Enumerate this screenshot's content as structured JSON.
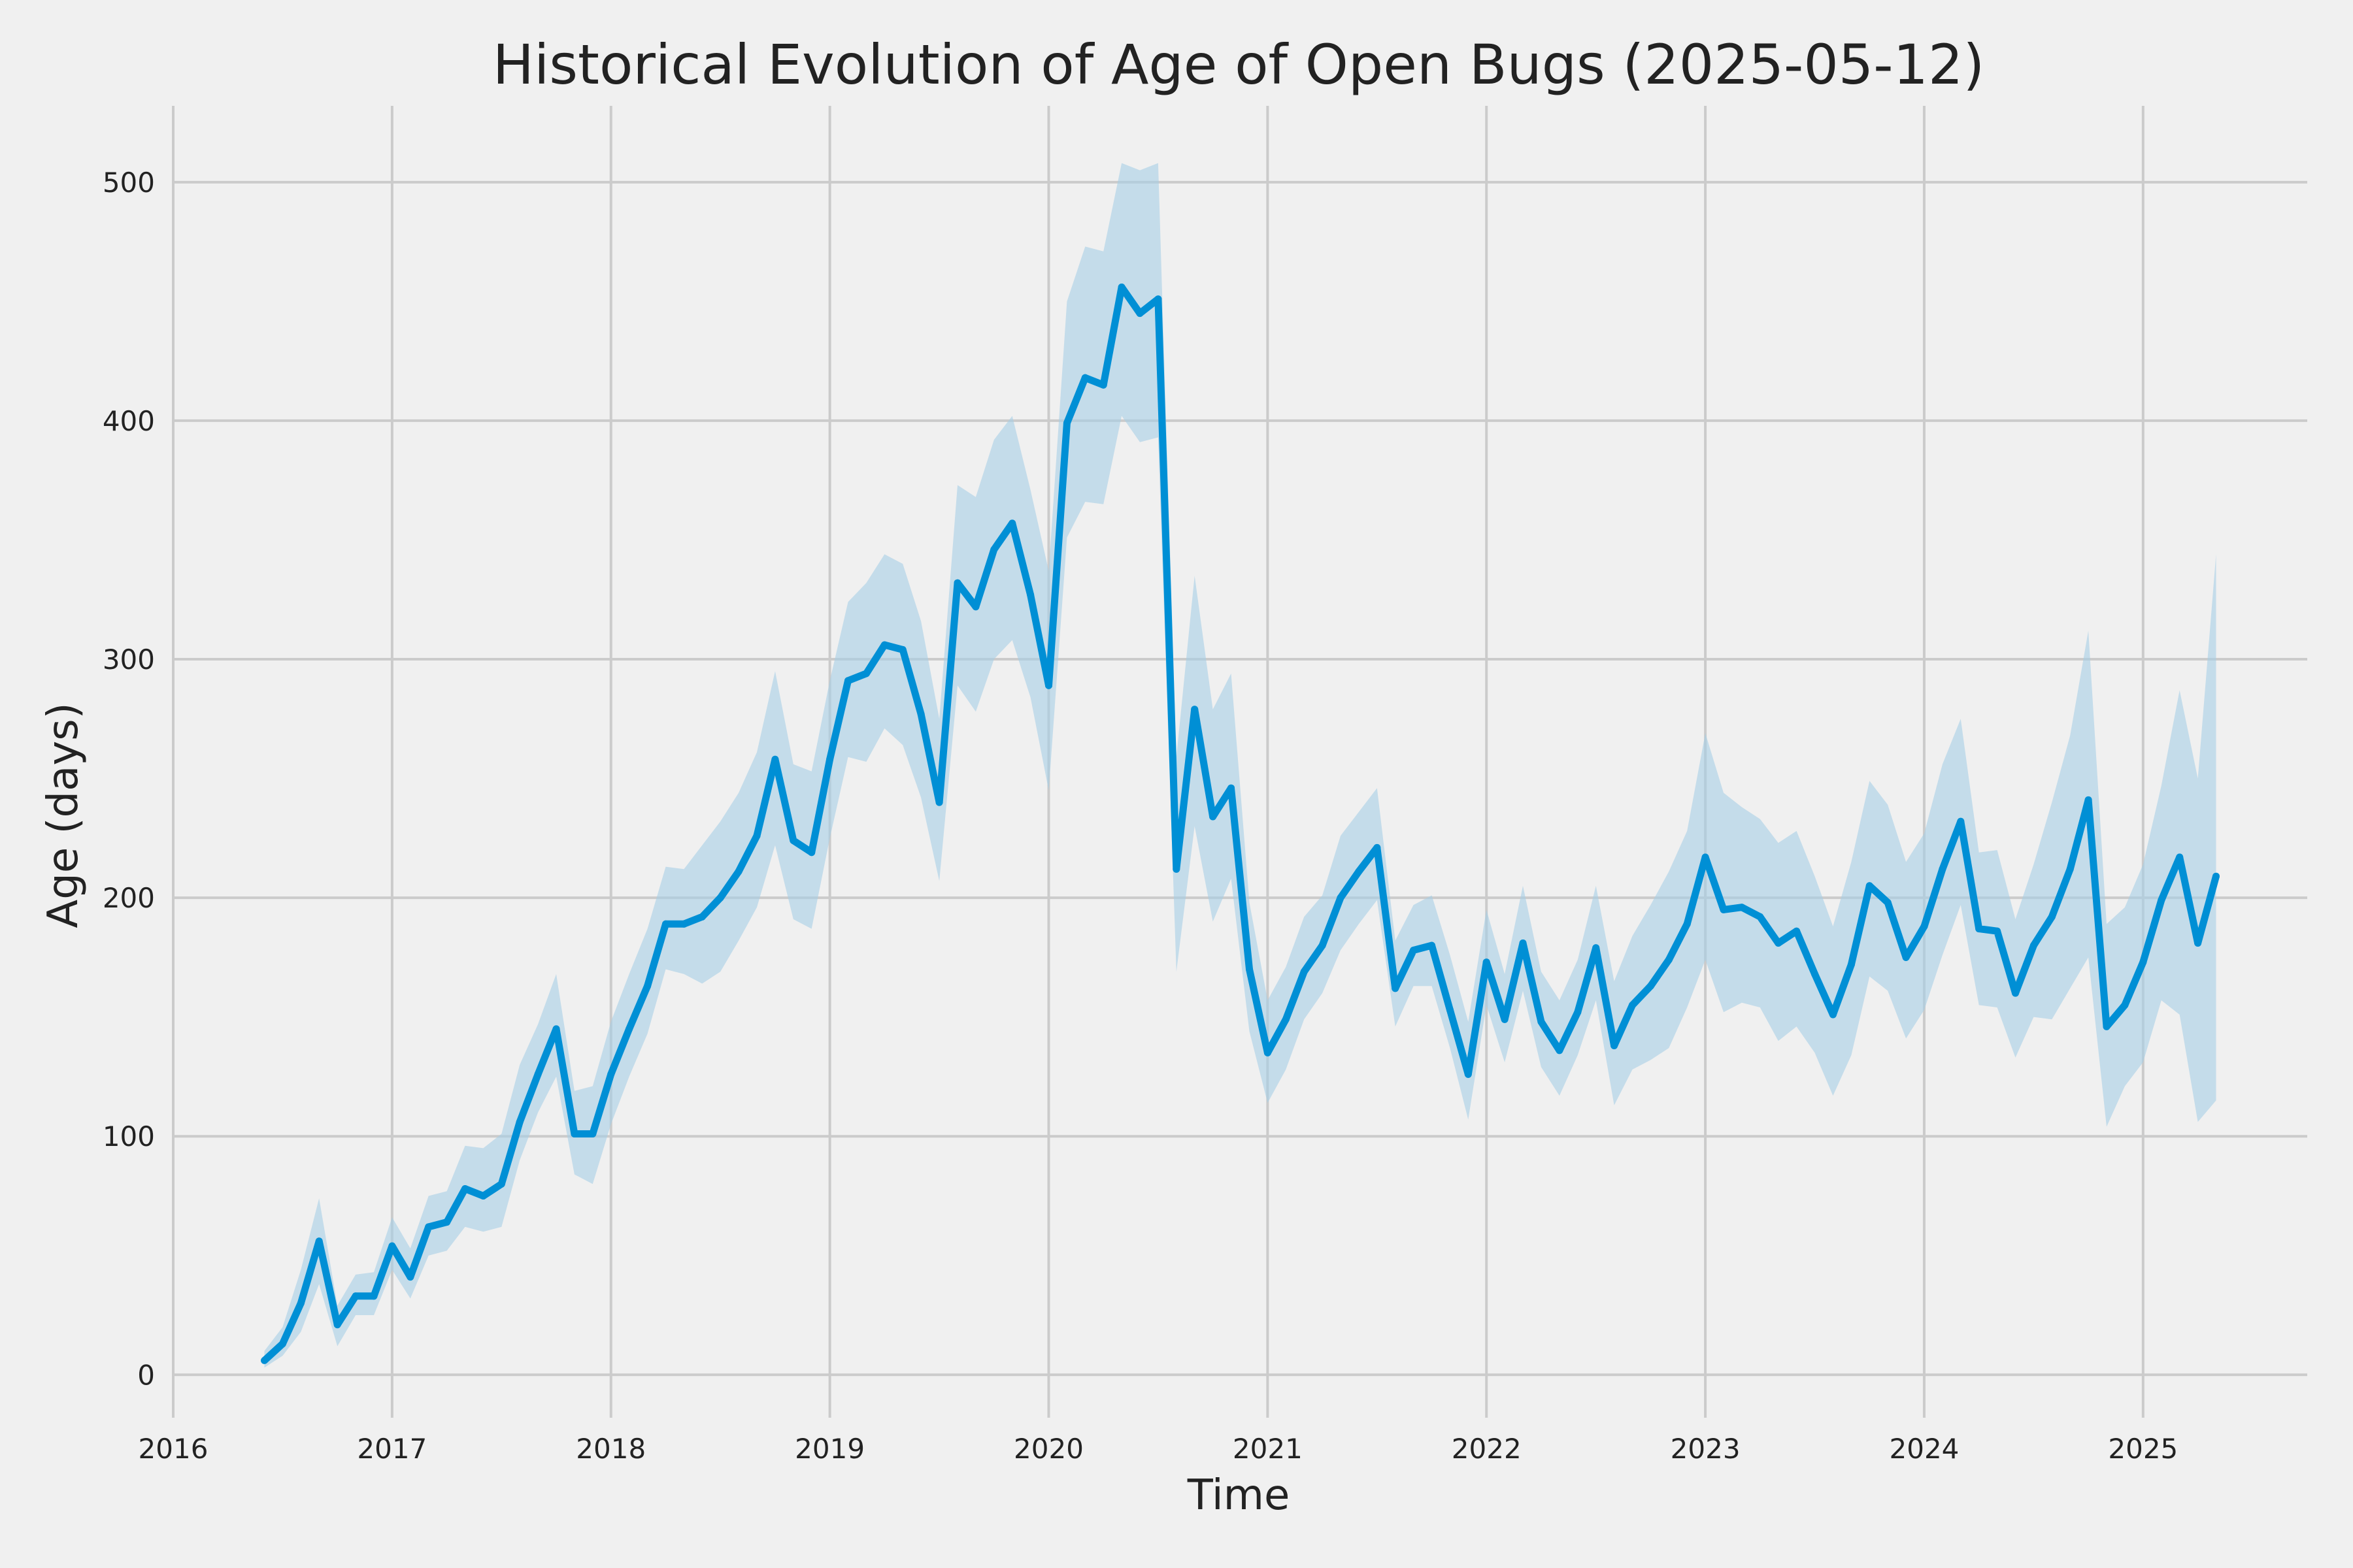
{
  "chart_data": {
    "type": "line",
    "title": "Historical Evolution of Age of Open Bugs (2025-05-12)",
    "xlabel": "Time",
    "ylabel": "Age (days)",
    "xlim": [
      "2016-01-01",
      "2025-10-01"
    ],
    "ylim": [
      -18,
      532
    ],
    "grid": true,
    "x_ticks": [
      "2016",
      "2017",
      "2018",
      "2019",
      "2020",
      "2021",
      "2022",
      "2023",
      "2024",
      "2025"
    ],
    "y_ticks": [
      "0",
      "100",
      "200",
      "300",
      "400",
      "500"
    ],
    "colors": {
      "line": "#008fd5",
      "band": "#a6cfe6",
      "grid": "#cbcbcb",
      "background": "#f0f0f0",
      "text": "#222222"
    },
    "series": [
      {
        "x": [
          "2016-06",
          "2016-07",
          "2016-08",
          "2016-09",
          "2016-10",
          "2016-11",
          "2016-12",
          "2017-01",
          "2017-02",
          "2017-03",
          "2017-04",
          "2017-05",
          "2017-06",
          "2017-07",
          "2017-08",
          "2017-09",
          "2017-10",
          "2017-11",
          "2017-12",
          "2018-01",
          "2018-02",
          "2018-03",
          "2018-04",
          "2018-05",
          "2018-06",
          "2018-07",
          "2018-08",
          "2018-09",
          "2018-10",
          "2018-11",
          "2018-12",
          "2019-01",
          "2019-02",
          "2019-03",
          "2019-04",
          "2019-05",
          "2019-06",
          "2019-07",
          "2019-08",
          "2019-09",
          "2019-10",
          "2019-11",
          "2019-12",
          "2020-01",
          "2020-02",
          "2020-03",
          "2020-04",
          "2020-05",
          "2020-06",
          "2020-07",
          "2020-08",
          "2020-09",
          "2020-10",
          "2020-11",
          "2020-12",
          "2021-01",
          "2021-02",
          "2021-03",
          "2021-04",
          "2021-05",
          "2021-06",
          "2021-07",
          "2021-08",
          "2021-09",
          "2021-10",
          "2021-11",
          "2021-12",
          "2022-01",
          "2022-02",
          "2022-03",
          "2022-04",
          "2022-05",
          "2022-06",
          "2022-07",
          "2022-08",
          "2022-09",
          "2022-10",
          "2022-11",
          "2022-12",
          "2023-01",
          "2023-02",
          "2023-03",
          "2023-04",
          "2023-05",
          "2023-06",
          "2023-07",
          "2023-08",
          "2023-09",
          "2023-10",
          "2023-11",
          "2023-12",
          "2024-01",
          "2024-02",
          "2024-03",
          "2024-04",
          "2024-05",
          "2024-06",
          "2024-07",
          "2024-08",
          "2024-09",
          "2024-10",
          "2024-11",
          "2024-12",
          "2025-01",
          "2025-02",
          "2025-03",
          "2025-04",
          "2025-05"
        ],
        "y": [
          6,
          13,
          30,
          56,
          21,
          33,
          33,
          54,
          41,
          62,
          64,
          78,
          75,
          80,
          106,
          126,
          145,
          101,
          101,
          126,
          145,
          163,
          189,
          189,
          192,
          200,
          211,
          226,
          258,
          224,
          219,
          258,
          291,
          294,
          306,
          304,
          277,
          240,
          332,
          322,
          346,
          357,
          327,
          289,
          399,
          418,
          415,
          456,
          445,
          451,
          212,
          279,
          234,
          246,
          170,
          135,
          149,
          169,
          180,
          200,
          211,
          221,
          162,
          178,
          180,
          153,
          126,
          173,
          149,
          181,
          148,
          136,
          152,
          179,
          138,
          155,
          163,
          174,
          189,
          217,
          195,
          196,
          192,
          181,
          186,
          168,
          151,
          172,
          205,
          198,
          175,
          188,
          212,
          232,
          187,
          186,
          160,
          180,
          192,
          212,
          241,
          146,
          155,
          173,
          199,
          217,
          181,
          209
        ],
        "lower": [
          3,
          8,
          18,
          38,
          12,
          25,
          25,
          44,
          32,
          50,
          52,
          62,
          60,
          62,
          90,
          110,
          125,
          84,
          80,
          105,
          125,
          143,
          170,
          168,
          164,
          169,
          182,
          196,
          222,
          191,
          187,
          225,
          259,
          257,
          271,
          264,
          242,
          207,
          289,
          278,
          300,
          308,
          284,
          245,
          351,
          366,
          365,
          402,
          391,
          393,
          169,
          230,
          190,
          208,
          144,
          114,
          128,
          149,
          160,
          178,
          189,
          199,
          146,
          163,
          163,
          137,
          107,
          155,
          131,
          161,
          129,
          117,
          134,
          157,
          113,
          128,
          132,
          137,
          154,
          174,
          152,
          156,
          154,
          140,
          146,
          135,
          117,
          134,
          167,
          161,
          141,
          153,
          176,
          197,
          155,
          154,
          133,
          150,
          149,
          162,
          175,
          104,
          121,
          131,
          157,
          151,
          106,
          115
        ],
        "upper": [
          10,
          20,
          44,
          74,
          29,
          42,
          43,
          66,
          53,
          75,
          77,
          96,
          95,
          101,
          130,
          147,
          168,
          119,
          121,
          148,
          168,
          187,
          213,
          212,
          222,
          232,
          244,
          261,
          295,
          256,
          253,
          291,
          324,
          332,
          344,
          340,
          316,
          275,
          373,
          368,
          392,
          402,
          371,
          337,
          450,
          473,
          471,
          508,
          505,
          508,
          259,
          335,
          279,
          294,
          198,
          157,
          171,
          192,
          201,
          226,
          236,
          246,
          182,
          197,
          201,
          176,
          148,
          195,
          168,
          205,
          169,
          157,
          174,
          205,
          165,
          184,
          197,
          211,
          228,
          269,
          244,
          238,
          233,
          223,
          228,
          209,
          188,
          215,
          249,
          239,
          215,
          227,
          256,
          275,
          219,
          220,
          191,
          214,
          240,
          268,
          312,
          189,
          196,
          214,
          247,
          287,
          250,
          344
        ]
      }
    ]
  }
}
